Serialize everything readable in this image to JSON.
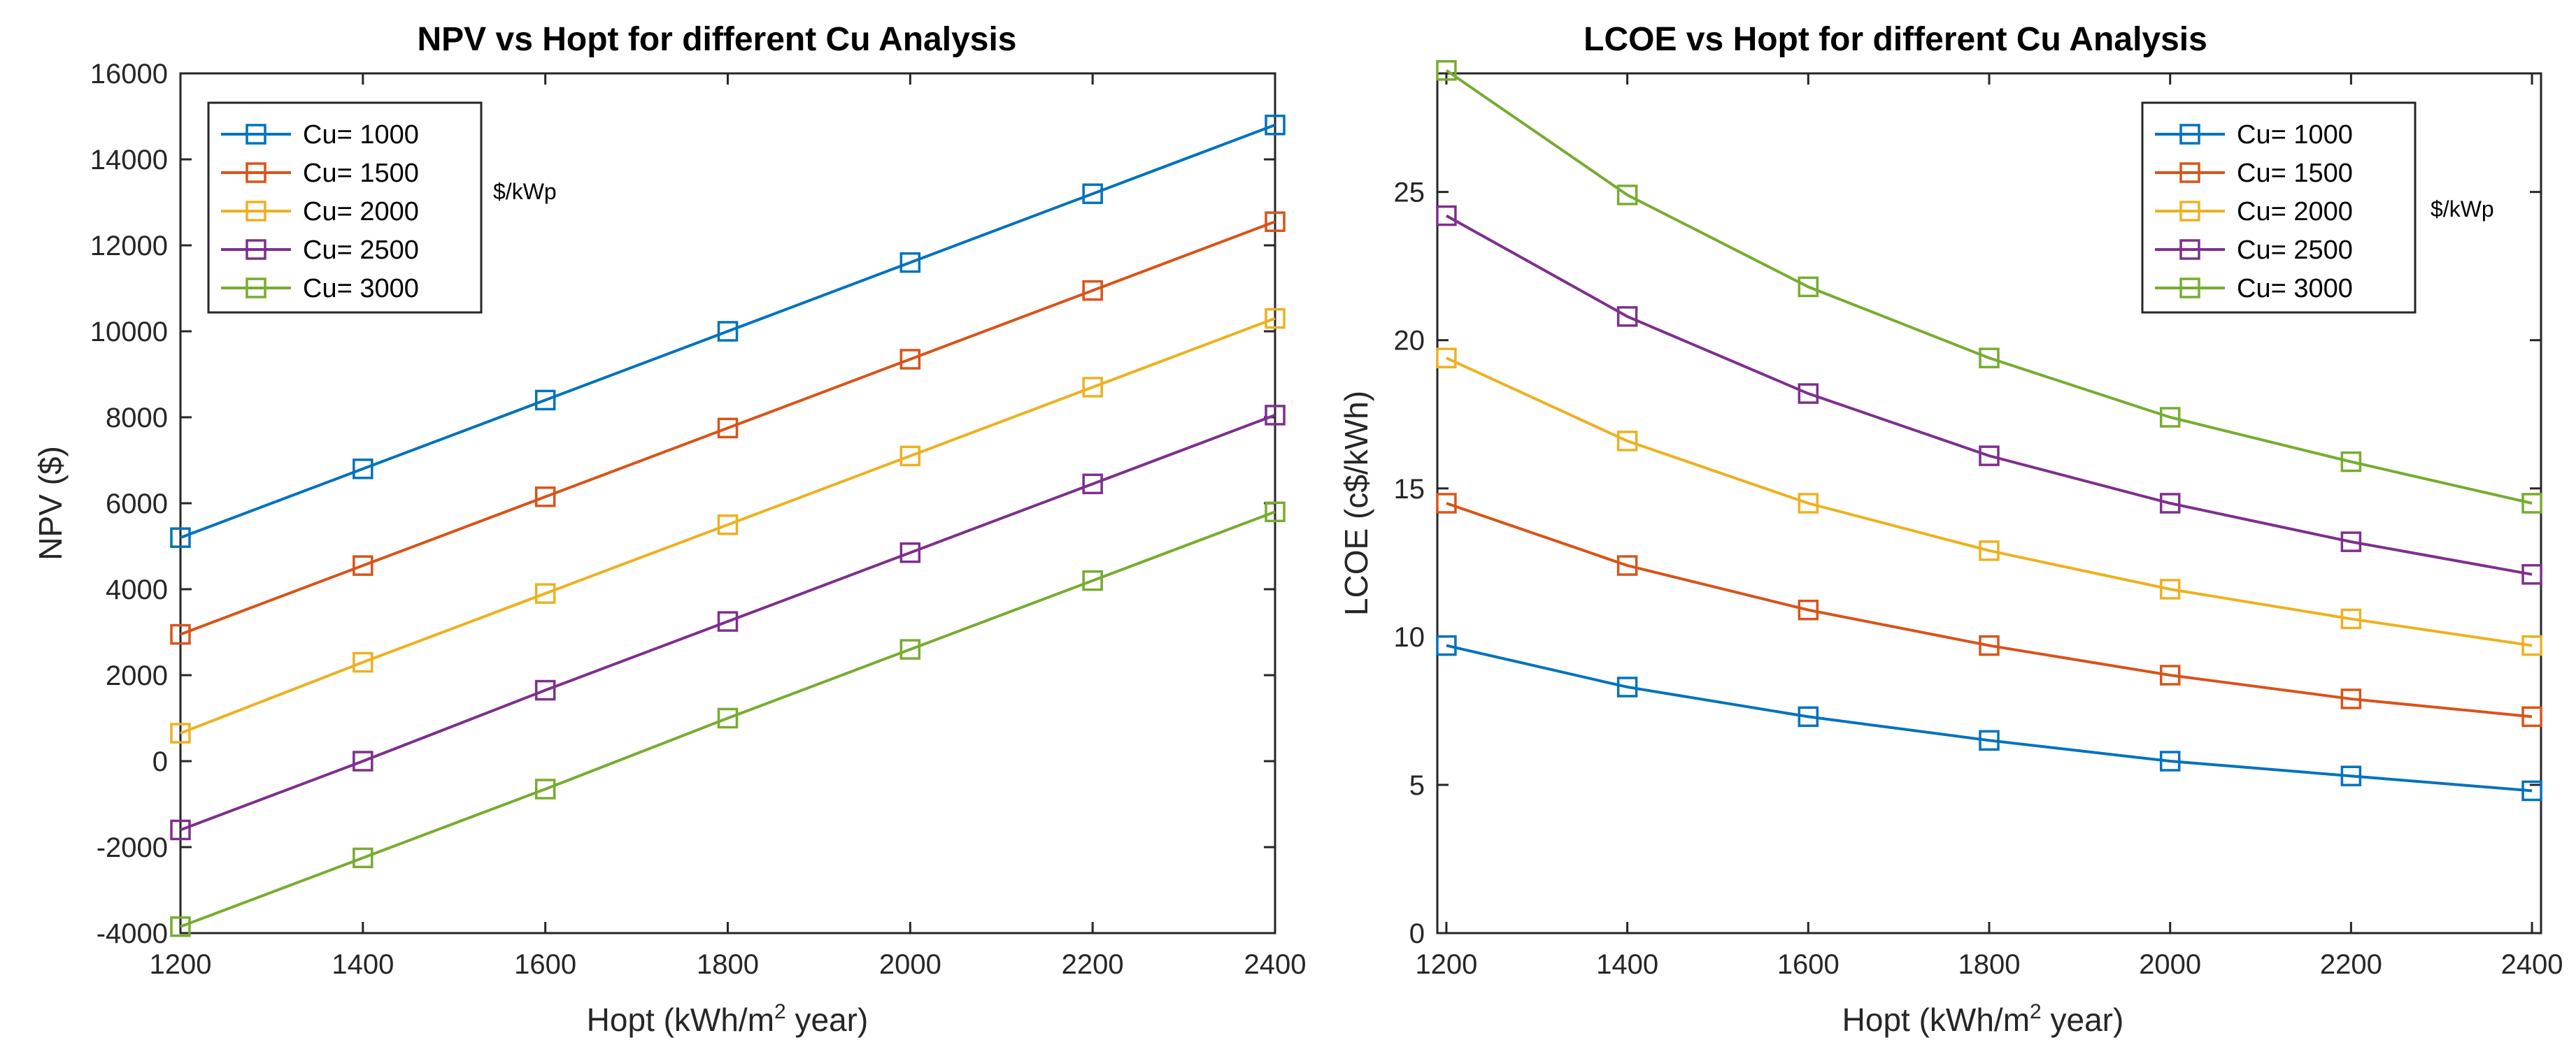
{
  "chart_data": [
    {
      "type": "line",
      "title": "NPV vs Hopt for different Cu Analysis",
      "xlabel": "Hopt (kWh/m² year)",
      "ylabel": "NPV ($)",
      "x": [
        1200,
        1400,
        1600,
        1800,
        2000,
        2200,
        2400
      ],
      "xlim": [
        1200,
        2400
      ],
      "ylim": [
        -4000,
        16000
      ],
      "xticks": [
        "1200",
        "1400",
        "1600",
        "1800",
        "2000",
        "2200",
        "2400"
      ],
      "yticks": [
        "-4000",
        "-2000",
        "0",
        "2000",
        "4000",
        "6000",
        "8000",
        "10000",
        "12000",
        "14000",
        "16000"
      ],
      "legend_position": "top-left",
      "legend_unit": "$/kWp",
      "series": [
        {
          "name": "Cu= 1000",
          "color": "#0072BD",
          "values": [
            5200,
            6800,
            8400,
            10000,
            11600,
            13200,
            14800
          ]
        },
        {
          "name": "Cu= 1500",
          "color": "#D95319",
          "values": [
            2950,
            4550,
            6150,
            7750,
            9350,
            10950,
            12550
          ]
        },
        {
          "name": "Cu= 2000",
          "color": "#EDB120",
          "values": [
            650,
            2300,
            3900,
            5500,
            7100,
            8700,
            10300
          ]
        },
        {
          "name": "Cu= 2500",
          "color": "#7E2F8E",
          "values": [
            -1600,
            0,
            1650,
            3250,
            4850,
            6450,
            8050
          ]
        },
        {
          "name": "Cu= 3000",
          "color": "#77AC30",
          "values": [
            -3850,
            -2250,
            -650,
            1000,
            2600,
            4200,
            5800
          ]
        }
      ]
    },
    {
      "type": "line",
      "title": "LCOE vs Hopt for different Cu Analysis",
      "xlabel": "Hopt (kWh/m² year)",
      "ylabel": "LCOE (c$/kWh)",
      "x": [
        1200,
        1400,
        1600,
        1800,
        2000,
        2200,
        2400
      ],
      "xlim": [
        1190,
        2410
      ],
      "ylim": [
        0,
        29
      ],
      "xticks": [
        "1200",
        "1400",
        "1600",
        "1800",
        "2000",
        "2200",
        "2400"
      ],
      "yticks": [
        "0",
        "5",
        "10",
        "15",
        "20",
        "25"
      ],
      "legend_position": "top-right",
      "legend_unit": "$/kWp",
      "series": [
        {
          "name": "Cu= 1000",
          "color": "#0072BD",
          "values": [
            9.7,
            8.3,
            7.3,
            6.5,
            5.8,
            5.3,
            4.8
          ]
        },
        {
          "name": "Cu= 1500",
          "color": "#D95319",
          "values": [
            14.5,
            12.4,
            10.9,
            9.7,
            8.7,
            7.9,
            7.3
          ]
        },
        {
          "name": "Cu= 2000",
          "color": "#EDB120",
          "values": [
            19.4,
            16.6,
            14.5,
            12.9,
            11.6,
            10.6,
            9.7
          ]
        },
        {
          "name": "Cu= 2500",
          "color": "#7E2F8E",
          "values": [
            24.2,
            20.8,
            18.2,
            16.1,
            14.5,
            13.2,
            12.1
          ]
        },
        {
          "name": "Cu= 3000",
          "color": "#77AC30",
          "values": [
            29.1,
            24.9,
            21.8,
            19.4,
            17.4,
            15.9,
            14.5
          ]
        }
      ]
    }
  ]
}
